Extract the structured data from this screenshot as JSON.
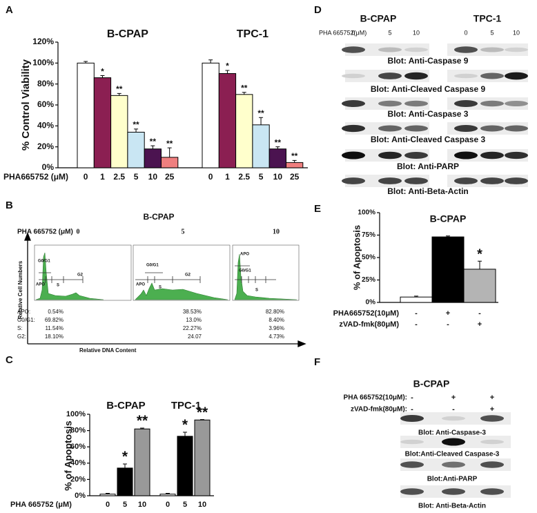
{
  "chart_data": [
    {
      "type": "bar",
      "label": "A",
      "ylabel": "% Control Viability",
      "xlabel": "PHA665752 (μM)",
      "categories": [
        "0",
        "1",
        "2.5",
        "5",
        "10",
        "25"
      ],
      "colors": [
        "#ffffff",
        "#8b1f52",
        "#ffffcc",
        "#c9e6f3",
        "#4b1350",
        "#ef7f7f"
      ],
      "ylim": [
        0,
        120
      ],
      "yticks": [
        {
          "value": 0,
          "label": "0%"
        },
        {
          "value": 20,
          "label": "20%"
        },
        {
          "value": 40,
          "label": "40%"
        },
        {
          "value": 60,
          "label": "60%"
        },
        {
          "value": 80,
          "label": "80%"
        },
        {
          "value": 100,
          "label": "100%"
        },
        {
          "value": 120,
          "label": "120%"
        }
      ],
      "groups": [
        {
          "name": "B-CPAP",
          "values": [
            100,
            86,
            69,
            34,
            18,
            10
          ],
          "errors": [
            1.5,
            2,
            2,
            3,
            3,
            9
          ],
          "annotations": [
            null,
            "*",
            "**",
            "**",
            "**",
            "**"
          ]
        },
        {
          "name": "TPC-1",
          "values": [
            100,
            90,
            70,
            41,
            18,
            5
          ],
          "errors": [
            3,
            3,
            2,
            7,
            2,
            2
          ],
          "annotations": [
            null,
            "*",
            "**",
            "**",
            "**",
            "**"
          ]
        }
      ]
    },
    {
      "type": "bar",
      "label": "C",
      "ylabel": "% of Apoptosis",
      "xlabel": "PHA 665752 (μM)",
      "categories": [
        "0",
        "5",
        "10"
      ],
      "colors": [
        "#f0f0f0",
        "#000000",
        "#999999"
      ],
      "ylim": [
        0,
        100
      ],
      "yticks": [
        {
          "value": 0,
          "label": "0%"
        },
        {
          "value": 20,
          "label": "20%"
        },
        {
          "value": 40,
          "label": "40%"
        },
        {
          "value": 60,
          "label": "60%"
        },
        {
          "value": 80,
          "label": "80%"
        },
        {
          "value": 100,
          "label": "100%"
        }
      ],
      "groups": [
        {
          "name": "B-CPAP",
          "values": [
            2,
            34,
            82
          ],
          "errors": [
            1,
            5,
            1
          ],
          "annotations": [
            null,
            "*",
            "**"
          ]
        },
        {
          "name": "TPC-1",
          "values": [
            2,
            73,
            93
          ],
          "errors": [
            1,
            5,
            0.5
          ],
          "annotations": [
            null,
            "*",
            "**"
          ]
        }
      ]
    },
    {
      "type": "bar",
      "label": "E",
      "ylabel": "% of Apoptosis",
      "colors": [
        "#ffffff",
        "#000000",
        "#b4b4b4"
      ],
      "ylim": [
        0,
        100
      ],
      "yticks": [
        {
          "value": 0,
          "label": "0%"
        },
        {
          "value": 25,
          "label": "25%"
        },
        {
          "value": 50,
          "label": "50%"
        },
        {
          "value": 75,
          "label": "75%"
        },
        {
          "value": 100,
          "label": "100%"
        }
      ],
      "groups": [
        {
          "name": "B-CPAP",
          "values": [
            6,
            73,
            37
          ],
          "errors": [
            1,
            1,
            9
          ],
          "annotations": [
            null,
            null,
            "*"
          ]
        }
      ],
      "conditions": [
        {
          "name": "PHA665752(10μM)",
          "values": [
            "-",
            "+",
            "-"
          ]
        },
        {
          "name": "zVAD-fmk(80μM)",
          "values": [
            "-",
            "-",
            "+"
          ]
        }
      ]
    }
  ],
  "flow_cytometry": {
    "label": "B",
    "title": "B-CPAP",
    "treatment": "PHA 665752 (μM)",
    "doses": [
      "0",
      "5",
      "10"
    ],
    "gates": [
      [
        "G0/G1",
        "APO",
        "S",
        "G2"
      ],
      [
        "G0/G1",
        "APO",
        "S",
        "G2"
      ],
      [
        "APO",
        "G0/G1",
        "S"
      ]
    ],
    "row_labels": [
      "APO:",
      "G0/G1:",
      "S:",
      "G2:"
    ],
    "stats": [
      [
        "0.54%",
        "69.82%",
        "11.54%",
        "18.10%"
      ],
      [
        "38.53%",
        "13.0%",
        "22.27%",
        "24.07"
      ],
      [
        "82.80%",
        "8.40%",
        "3.96%",
        "4.73%"
      ]
    ],
    "y_axis": "Relative Cell Numbers",
    "x_axis": "Relative DNA Content"
  },
  "western_blot_d": {
    "label": "D",
    "cell_lines": [
      "B-CPAP",
      "TPC-1"
    ],
    "treatment": "PHA 665752(μM)",
    "doses": [
      "0",
      "5",
      "10",
      "0",
      "5",
      "10"
    ],
    "blots": [
      "Blot: Anti-Caspase 9",
      "Blot: Anti-Cleaved Caspase 9",
      "Blot: Anti-Caspase 3",
      "Blot: Anti-Cleaved Caspase 3",
      "Blot: Anti-PARP",
      "Blot: Anti-Beta-Actin"
    ]
  },
  "western_blot_f": {
    "label": "F",
    "title": "B-CPAP",
    "conditions": [
      {
        "name": "PHA 665752(10μM):",
        "values": [
          "-",
          "+",
          "+"
        ]
      },
      {
        "name": "zVAD-fmk(80μM):",
        "values": [
          "-",
          "-",
          "+"
        ]
      }
    ],
    "blots": [
      "Blot: Anti-Caspase-3",
      "Blot:Anti-Cleaved Caspase-3",
      "Blot:Anti-PARP",
      "Blot: Anti-Beta-Actin"
    ]
  }
}
